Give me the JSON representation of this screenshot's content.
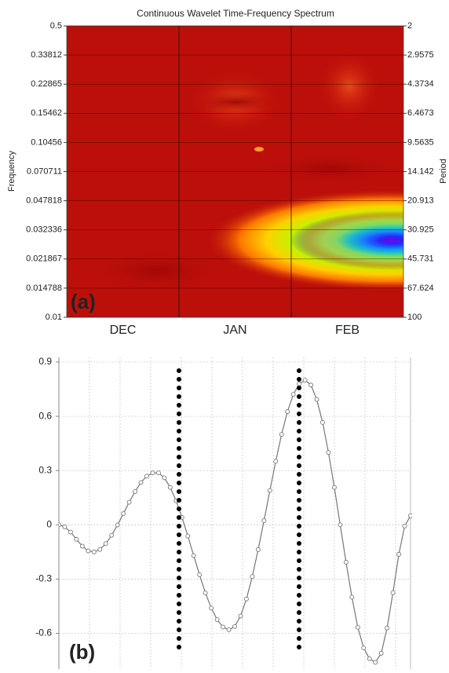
{
  "chart_data": [
    {
      "type": "heatmap",
      "title": "Continuous Wavelet Time-Frequency Spectrum",
      "annotation": "(a)",
      "y_label": "Frequency",
      "y2_label": "Period",
      "categories": [
        "DEC",
        "JAN",
        "FEB"
      ],
      "ylim": [
        0.01,
        0.5
      ],
      "yscale": "log",
      "yticks": [
        0.5,
        0.33812,
        0.22865,
        0.15462,
        0.10456,
        0.070711,
        0.047818,
        0.032336,
        0.021867,
        0.014788,
        0.01
      ],
      "y2lim": [
        100,
        2
      ],
      "y2scale": "log",
      "y2ticks": [
        2,
        2.9575,
        4.3734,
        6.4673,
        9.5635,
        14.142,
        20.913,
        30.925,
        45.731,
        67.624,
        100
      ],
      "grid": true
    },
    {
      "type": "line",
      "annotation": "(b)",
      "color": "#777777",
      "xlim": [
        0,
        60
      ],
      "x": [
        0,
        1,
        2,
        3,
        4,
        5,
        6,
        7,
        8,
        9,
        10,
        11,
        12,
        13,
        14,
        15,
        16,
        17,
        18,
        19,
        20,
        21,
        22,
        23,
        24,
        25,
        26,
        27,
        28,
        29,
        30,
        31,
        32,
        33,
        34,
        35,
        36,
        37,
        38,
        39,
        40,
        41,
        42,
        43,
        44,
        45,
        46,
        47,
        48,
        49,
        50,
        51,
        52,
        53,
        54,
        55,
        56,
        57,
        58,
        59,
        60
      ],
      "values": [
        0,
        -0.011,
        -0.04,
        -0.08,
        -0.118,
        -0.144,
        -0.15,
        -0.136,
        -0.104,
        -0.058,
        -0.001,
        0.062,
        0.125,
        0.184,
        0.234,
        0.269,
        0.287,
        0.287,
        0.26,
        0.207,
        0.133,
        0.041,
        -0.062,
        -0.17,
        -0.276,
        -0.376,
        -0.46,
        -0.524,
        -0.565,
        -0.58,
        -0.562,
        -0.504,
        -0.41,
        -0.286,
        -0.137,
        0.023,
        0.19,
        0.351,
        0.5,
        0.626,
        0.721,
        0.779,
        0.8,
        0.773,
        0.693,
        0.566,
        0.4,
        0.207,
        0,
        -0.207,
        -0.4,
        -0.566,
        -0.68,
        -0.74,
        -0.76,
        -0.71,
        -0.57,
        -0.375,
        -0.163,
        -0.007,
        0.05
      ],
      "ylim": [
        -0.78,
        0.9
      ],
      "yticks": [
        0.9,
        0.6,
        0.3,
        0,
        -0.3,
        -0.6
      ],
      "grid": true
    }
  ]
}
